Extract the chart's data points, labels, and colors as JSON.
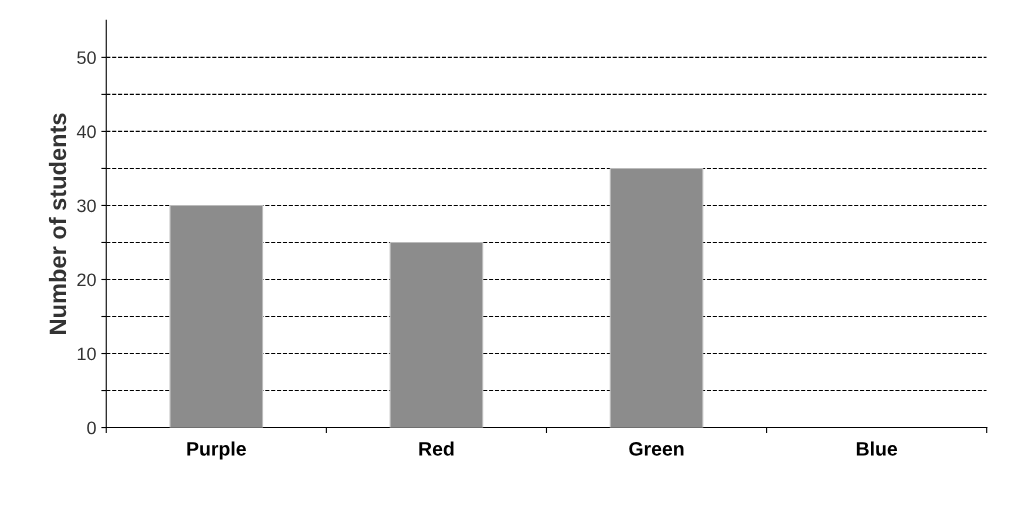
{
  "chart_data": {
    "type": "bar",
    "ylabel": "Number of students",
    "categories": [
      "Purple",
      "Red",
      "Green",
      "Blue"
    ],
    "values": [
      30,
      25,
      35,
      null
    ],
    "color": "#8c8c8c",
    "ylim": [
      0,
      55
    ],
    "yticks": [
      0,
      {
        "value": 5,
        "label": null
      },
      10,
      {
        "value": 15,
        "label": null
      },
      20,
      {
        "value": 25,
        "label": null
      },
      30,
      {
        "value": 35,
        "label": null
      },
      40,
      {
        "value": 45,
        "label": null
      },
      50
    ],
    "grid": "y",
    "line_style": "dashed"
  }
}
